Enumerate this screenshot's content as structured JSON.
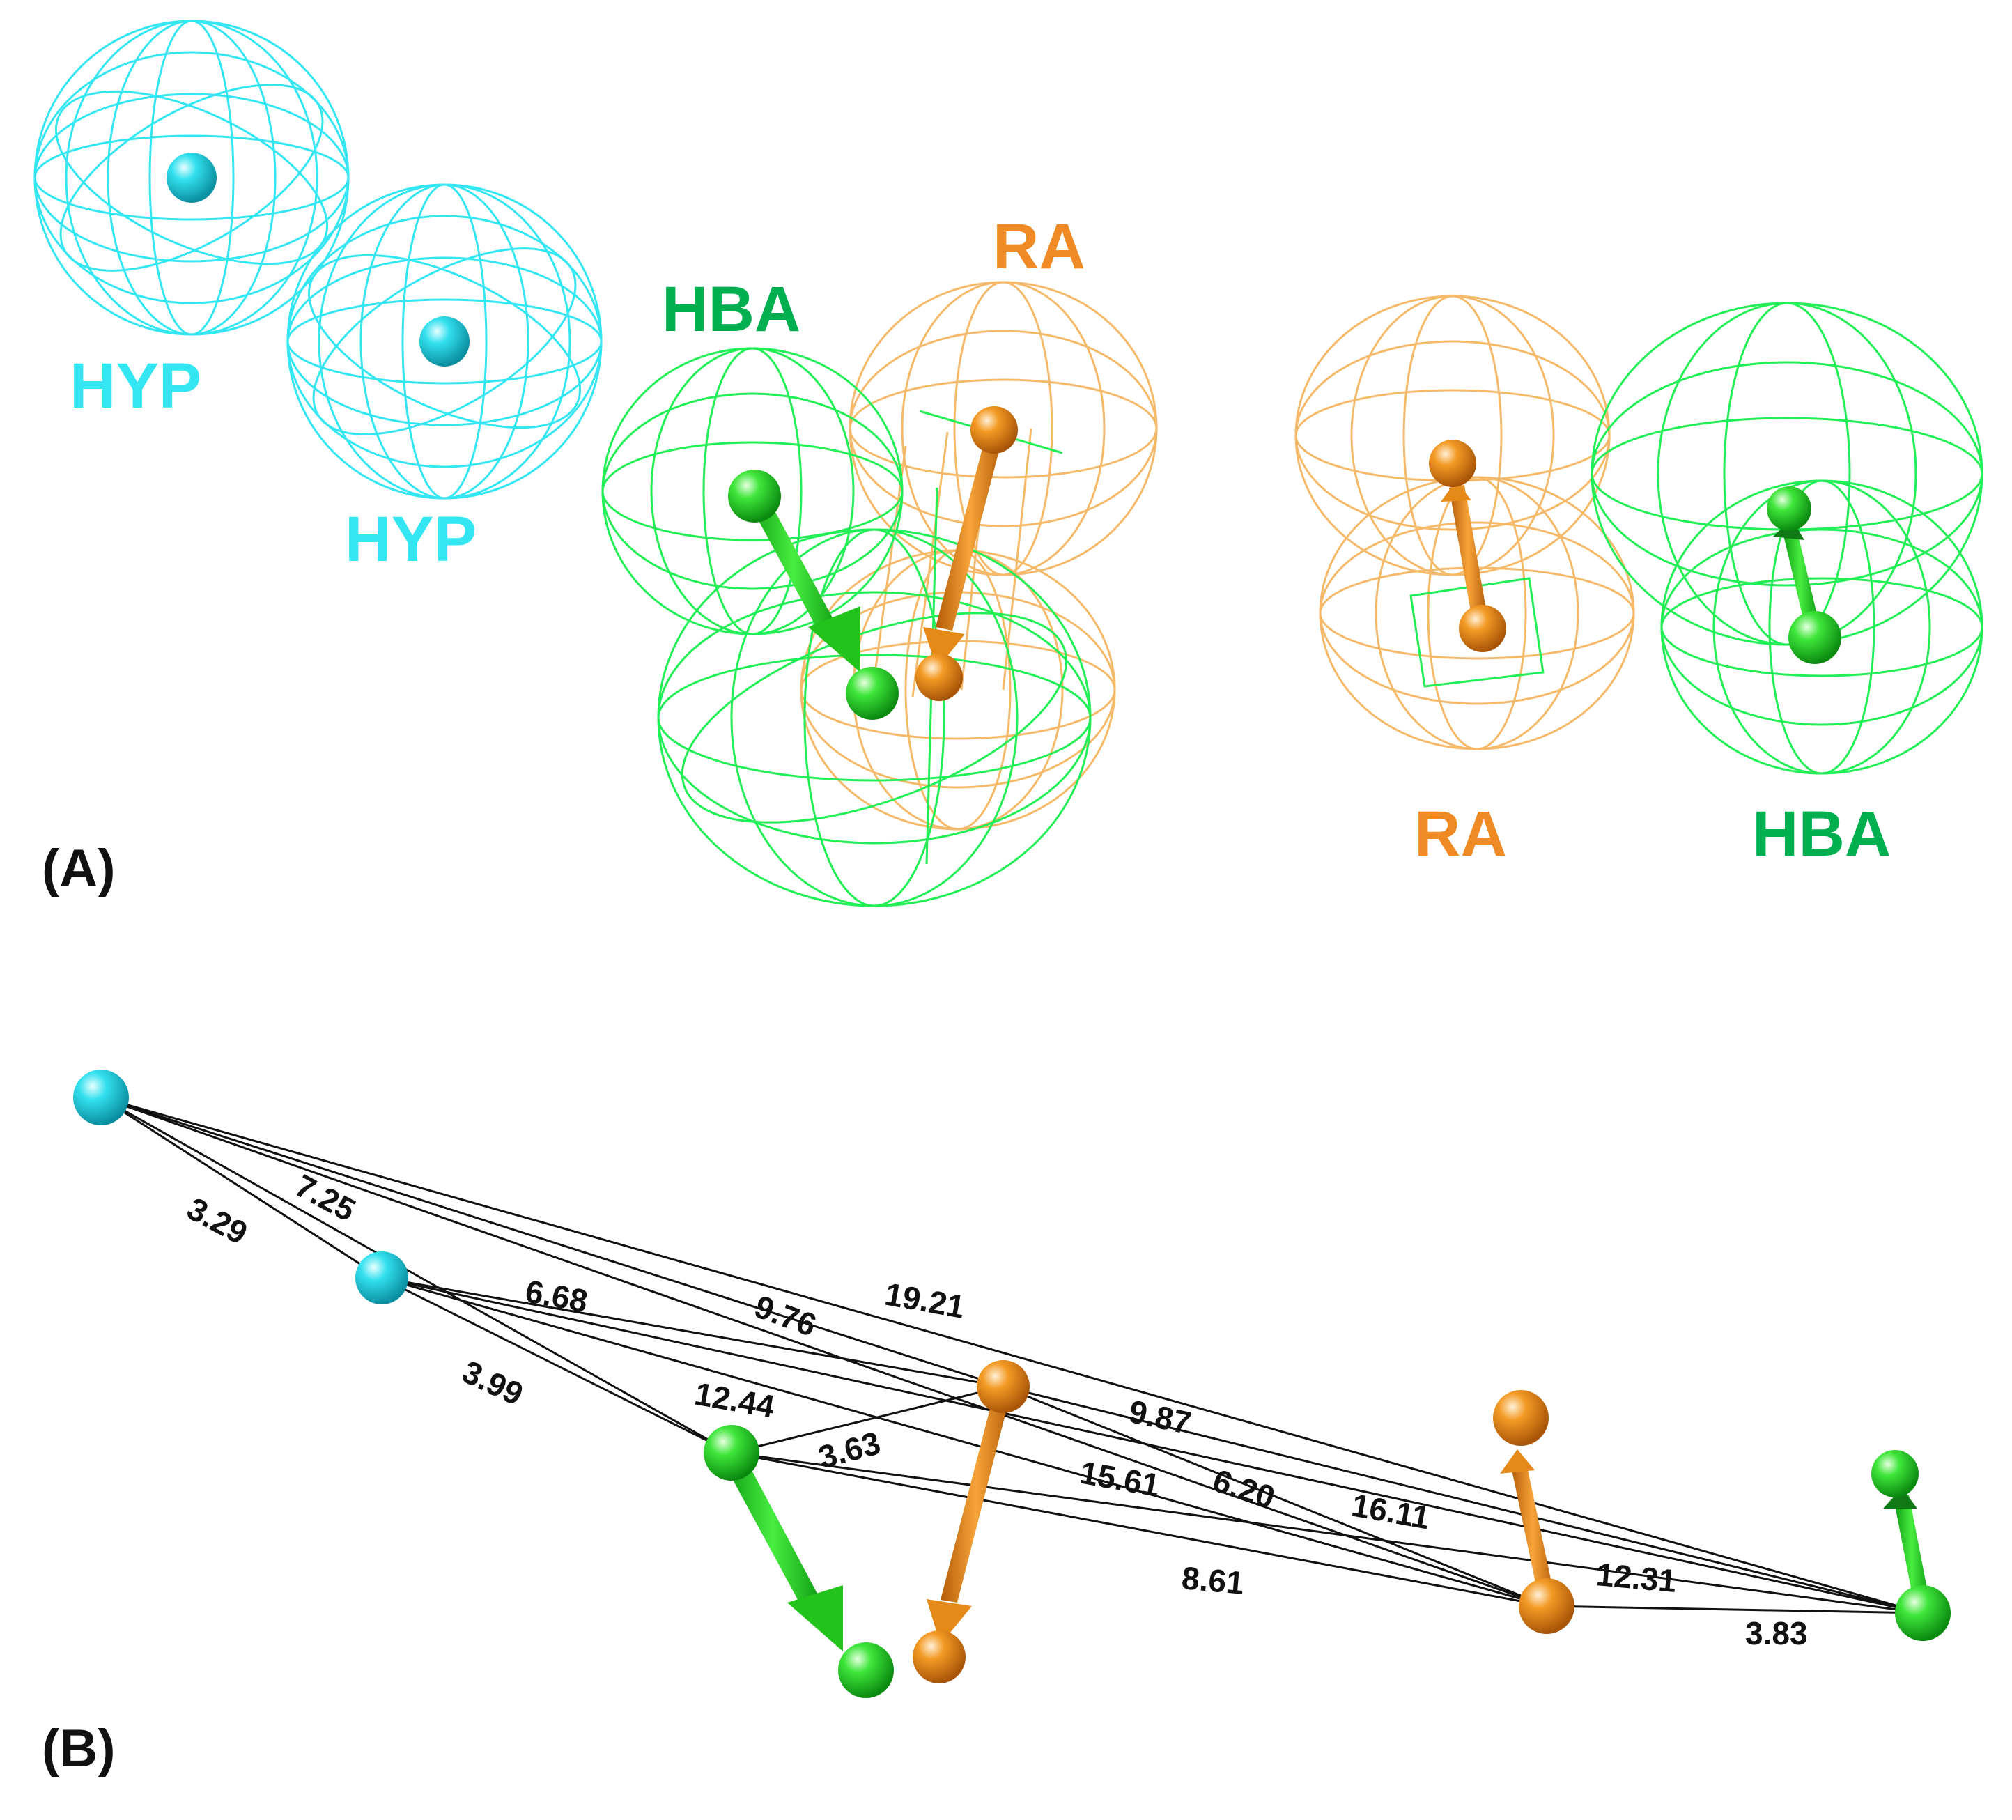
{
  "panels": {
    "a": {
      "label": "(A)"
    },
    "b": {
      "label": "(B)"
    }
  },
  "colors": {
    "hyp": "#33e6f2",
    "hba": "#00b050",
    "ra": "#f08a24",
    "hba_mesh": "#22ee55",
    "ra_mesh": "#f5b96a",
    "line": "#111111"
  },
  "features": {
    "hyp1": "HYP",
    "hyp2": "HYP",
    "hba_left": "HBA",
    "ra_left": "RA",
    "ra_right": "RA",
    "hba_right": "HBA"
  },
  "distances": {
    "d_3_29": "3.29",
    "d_7_25": "7.25",
    "d_6_68": "6.68",
    "d_9_76": "9.76",
    "d_19_21": "19.21",
    "d_3_99": "3.99",
    "d_12_44": "12.44",
    "d_3_63": "3.63",
    "d_9_87": "9.87",
    "d_15_61": "15.61",
    "d_6_20": "6.20",
    "d_16_11": "16.11",
    "d_8_61": "8.61",
    "d_12_31": "12.31",
    "d_3_83": "3.83"
  }
}
